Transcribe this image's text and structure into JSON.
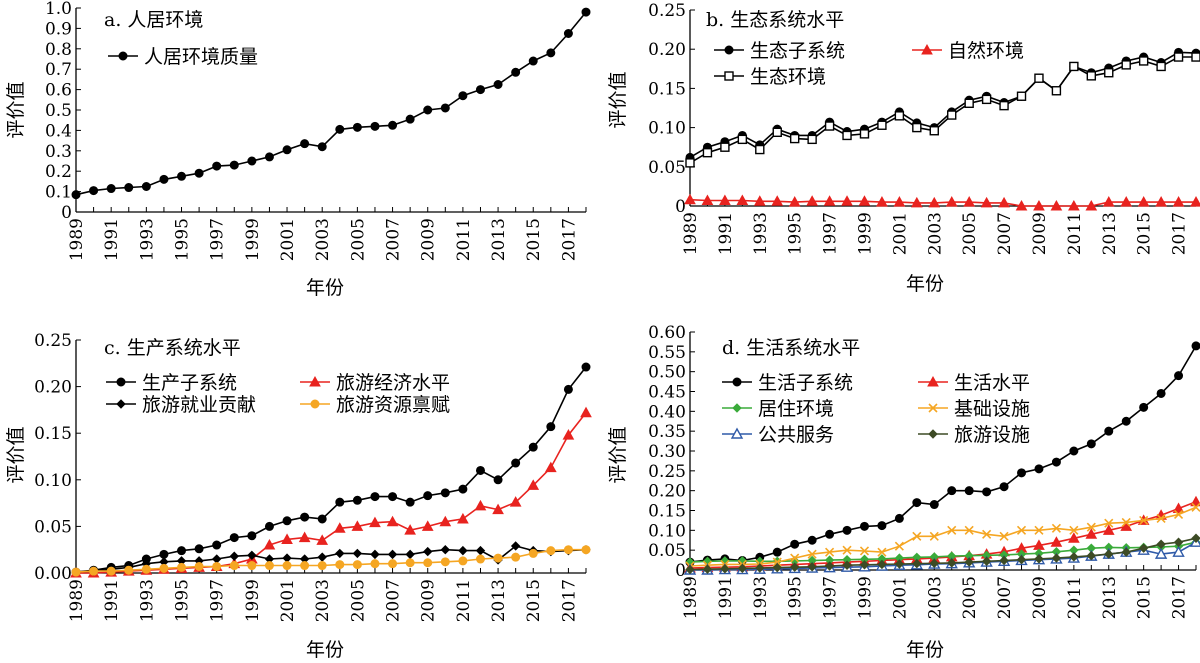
{
  "chart_data": [
    {
      "type": "line",
      "title": "a. 人居环境",
      "xlabel": "年份",
      "ylabel": "评价值",
      "ylim": [
        0,
        1.0
      ],
      "yticks": [
        0,
        0.1,
        0.2,
        0.3,
        0.4,
        0.5,
        0.6,
        0.7,
        0.8,
        0.9,
        1.0
      ],
      "ytick_labels": [
        "0",
        "0.1",
        "0.2",
        "0.3",
        "0.4",
        "0.5",
        "0.6",
        "0.7",
        "0.8",
        "0.9",
        "1.0"
      ],
      "xlim": [
        1989,
        2018
      ],
      "xtick_labels": [
        "1989",
        "1991",
        "1993",
        "1995",
        "1997",
        "1999",
        "2001",
        "2003",
        "2005",
        "2007",
        "2009",
        "2011",
        "2013",
        "2015",
        "2017"
      ],
      "legend_cols": 1,
      "legend_position": "top-left",
      "series": [
        {
          "name": "人居环境质量",
          "color": "#000000",
          "marker": "circle",
          "values": [
            0.085,
            0.105,
            0.115,
            0.12,
            0.125,
            0.16,
            0.175,
            0.19,
            0.225,
            0.23,
            0.25,
            0.27,
            0.305,
            0.335,
            0.32,
            0.405,
            0.415,
            0.42,
            0.425,
            0.455,
            0.5,
            0.51,
            0.57,
            0.6,
            0.625,
            0.685,
            0.74,
            0.78,
            0.875,
            0.98
          ]
        }
      ]
    },
    {
      "type": "line",
      "title": "b. 生态系统水平",
      "xlabel": "年份",
      "ylabel": "评价值",
      "ylim": [
        0,
        0.25
      ],
      "yticks": [
        0,
        0.05,
        0.1,
        0.15,
        0.2,
        0.25
      ],
      "ytick_labels": [
        "0",
        "0.05",
        "0.10",
        "0.15",
        "0.20",
        "0.25"
      ],
      "xlim": [
        1989,
        2018
      ],
      "xtick_labels": [
        "1989",
        "1991",
        "1993",
        "1995",
        "1997",
        "1999",
        "2001",
        "2003",
        "2005",
        "2007",
        "2009",
        "2011",
        "2013",
        "2015",
        "2017"
      ],
      "legend_cols": 2,
      "legend_position": "top-left",
      "series": [
        {
          "name": "生态子系统",
          "color": "#000000",
          "marker": "circle",
          "values": [
            0.062,
            0.075,
            0.082,
            0.09,
            0.078,
            0.098,
            0.09,
            0.09,
            0.107,
            0.095,
            0.098,
            0.107,
            0.12,
            0.106,
            0.1,
            0.12,
            0.135,
            0.14,
            0.132,
            0.14,
            0.163,
            0.147,
            0.178,
            0.17,
            0.176,
            0.185,
            0.19,
            0.183,
            0.196,
            0.195
          ]
        },
        {
          "name": "自然环境",
          "color": "#e8231f",
          "marker": "triangle",
          "values": [
            0.008,
            0.007,
            0.007,
            0.007,
            0.006,
            0.006,
            0.005,
            0.006,
            0.006,
            0.006,
            0.006,
            0.005,
            0.005,
            0.004,
            0.004,
            0.005,
            0.005,
            0.004,
            0.004,
            0.0,
            0.0,
            0.0,
            0.0,
            0.0,
            0.005,
            0.005,
            0.005,
            0.005,
            0.005,
            0.005
          ]
        },
        {
          "name": "生态环境",
          "color": "#000000",
          "marker": "square",
          "values": [
            0.055,
            0.068,
            0.075,
            0.085,
            0.072,
            0.094,
            0.086,
            0.085,
            0.102,
            0.09,
            0.092,
            0.103,
            0.115,
            0.1,
            0.096,
            0.116,
            0.131,
            0.136,
            0.128,
            0.14,
            0.163,
            0.147,
            0.178,
            0.166,
            0.17,
            0.18,
            0.185,
            0.178,
            0.19,
            0.19
          ]
        }
      ]
    },
    {
      "type": "line",
      "title": "c. 生产系统水平",
      "xlabel": "年份",
      "ylabel": "评价值",
      "ylim": [
        0,
        0.25
      ],
      "yticks": [
        0,
        0.05,
        0.1,
        0.15,
        0.2,
        0.25
      ],
      "ytick_labels": [
        "0.00",
        "0.05",
        "0.10",
        "0.15",
        "0.20",
        "0.25"
      ],
      "xlim": [
        1989,
        2018
      ],
      "xtick_labels": [
        "1989",
        "1991",
        "1993",
        "1995",
        "1997",
        "1999",
        "2001",
        "2003",
        "2005",
        "2007",
        "2009",
        "2011",
        "2013",
        "2015",
        "2017"
      ],
      "legend_cols": 2,
      "legend_position": "top-left",
      "series": [
        {
          "name": "生产子系统",
          "color": "#000000",
          "marker": "circle",
          "values": [
            0.001,
            0.003,
            0.006,
            0.008,
            0.015,
            0.02,
            0.024,
            0.026,
            0.03,
            0.038,
            0.04,
            0.05,
            0.056,
            0.06,
            0.058,
            0.076,
            0.078,
            0.082,
            0.082,
            0.076,
            0.083,
            0.086,
            0.09,
            0.11,
            0.1,
            0.118,
            0.135,
            0.157,
            0.197,
            0.221
          ]
        },
        {
          "name": "旅游经济水平",
          "color": "#e8231f",
          "marker": "triangle",
          "values": [
            0.0,
            0.0,
            0.001,
            0.002,
            0.003,
            0.004,
            0.005,
            0.006,
            0.007,
            0.01,
            0.015,
            0.03,
            0.036,
            0.038,
            0.035,
            0.048,
            0.05,
            0.054,
            0.055,
            0.046,
            0.05,
            0.055,
            0.058,
            0.072,
            0.068,
            0.076,
            0.094,
            0.113,
            0.148,
            0.172
          ]
        },
        {
          "name": "旅游就业贡献",
          "color": "#000000",
          "marker": "diamond",
          "values": [
            0.001,
            0.002,
            0.004,
            0.006,
            0.01,
            0.012,
            0.013,
            0.013,
            0.015,
            0.018,
            0.019,
            0.015,
            0.016,
            0.015,
            0.017,
            0.021,
            0.021,
            0.02,
            0.02,
            0.02,
            0.023,
            0.025,
            0.024,
            0.024,
            0.014,
            0.029,
            0.024,
            0.023,
            0.024,
            0.025
          ]
        },
        {
          "name": "旅游资源禀赋",
          "color": "#f5a623",
          "marker": "circle",
          "values": [
            0.001,
            0.002,
            0.002,
            0.003,
            0.004,
            0.005,
            0.006,
            0.007,
            0.007,
            0.008,
            0.008,
            0.008,
            0.008,
            0.008,
            0.008,
            0.009,
            0.009,
            0.01,
            0.01,
            0.011,
            0.011,
            0.012,
            0.013,
            0.015,
            0.016,
            0.017,
            0.021,
            0.024,
            0.025,
            0.025
          ]
        }
      ]
    },
    {
      "type": "line",
      "title": "d. 生活系统水平",
      "xlabel": "年份",
      "ylabel": "评价值",
      "ylim": [
        0,
        0.6
      ],
      "yticks": [
        0,
        0.05,
        0.1,
        0.15,
        0.2,
        0.25,
        0.3,
        0.35,
        0.4,
        0.45,
        0.5,
        0.55,
        0.6
      ],
      "ytick_labels": [
        "0",
        "0.05",
        "0.10",
        "0.15",
        "0.20",
        "0.25",
        "0.30",
        "0.35",
        "0.40",
        "0.45",
        "0.50",
        "0.55",
        "0.60"
      ],
      "xlim": [
        1989,
        2018
      ],
      "xtick_labels": [
        "1989",
        "1991",
        "1993",
        "1995",
        "1997",
        "1999",
        "2001",
        "2003",
        "2005",
        "2007",
        "2009",
        "2011",
        "2013",
        "2015",
        "2017"
      ],
      "legend_cols": 2,
      "legend_position": "top-left",
      "series": [
        {
          "name": "生活子系统",
          "color": "#000000",
          "marker": "circle",
          "values": [
            0.02,
            0.025,
            0.028,
            0.024,
            0.032,
            0.045,
            0.065,
            0.075,
            0.09,
            0.1,
            0.11,
            0.112,
            0.13,
            0.17,
            0.165,
            0.2,
            0.2,
            0.197,
            0.21,
            0.245,
            0.255,
            0.272,
            0.3,
            0.318,
            0.35,
            0.375,
            0.41,
            0.445,
            0.49,
            0.565
          ]
        },
        {
          "name": "生活水平",
          "color": "#e8231f",
          "marker": "triangle",
          "values": [
            0.005,
            0.006,
            0.007,
            0.008,
            0.01,
            0.012,
            0.014,
            0.016,
            0.018,
            0.02,
            0.022,
            0.024,
            0.026,
            0.028,
            0.03,
            0.033,
            0.036,
            0.04,
            0.046,
            0.055,
            0.062,
            0.07,
            0.08,
            0.09,
            0.1,
            0.11,
            0.125,
            0.138,
            0.155,
            0.172
          ]
        },
        {
          "name": "居住环境",
          "color": "#3aab3a",
          "marker": "diamond",
          "values": [
            0.02,
            0.022,
            0.023,
            0.023,
            0.022,
            0.022,
            0.023,
            0.024,
            0.025,
            0.026,
            0.027,
            0.028,
            0.03,
            0.032,
            0.033,
            0.035,
            0.036,
            0.037,
            0.038,
            0.04,
            0.042,
            0.046,
            0.05,
            0.055,
            0.057,
            0.056,
            0.057,
            0.058,
            0.06,
            0.07
          ]
        },
        {
          "name": "基础设施",
          "color": "#f5a623",
          "marker": "x",
          "values": [
            0.01,
            0.012,
            0.014,
            0.014,
            0.015,
            0.02,
            0.03,
            0.04,
            0.045,
            0.05,
            0.048,
            0.045,
            0.06,
            0.085,
            0.085,
            0.1,
            0.1,
            0.09,
            0.085,
            0.1,
            0.1,
            0.105,
            0.1,
            0.108,
            0.118,
            0.12,
            0.125,
            0.13,
            0.14,
            0.158
          ]
        },
        {
          "name": "公共服务",
          "color": "#2f5aa8",
          "marker": "triangle-open",
          "values": [
            0.0,
            0.0,
            0.001,
            0.001,
            0.002,
            0.003,
            0.004,
            0.005,
            0.006,
            0.007,
            0.008,
            0.01,
            0.012,
            0.013,
            0.015,
            0.016,
            0.018,
            0.02,
            0.022,
            0.024,
            0.026,
            0.028,
            0.03,
            0.035,
            0.04,
            0.045,
            0.05,
            0.04,
            0.045,
            0.07
          ]
        },
        {
          "name": "旅游设施",
          "color": "#3d4b25",
          "marker": "diamond",
          "values": [
            0.001,
            0.002,
            0.003,
            0.004,
            0.005,
            0.006,
            0.007,
            0.008,
            0.01,
            0.012,
            0.013,
            0.014,
            0.015,
            0.016,
            0.017,
            0.018,
            0.02,
            0.022,
            0.024,
            0.026,
            0.028,
            0.03,
            0.033,
            0.036,
            0.04,
            0.045,
            0.055,
            0.065,
            0.07,
            0.08
          ]
        }
      ]
    }
  ]
}
